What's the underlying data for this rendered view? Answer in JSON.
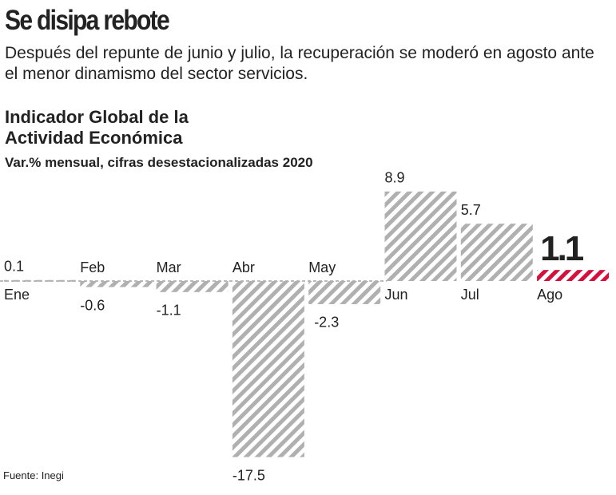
{
  "header": {
    "title": "Se disipa rebote",
    "subtitle": "Después del repunte de junio y julio, la recuperación se moderó en agosto ante el menor dinamismo del sector servicios."
  },
  "chart_data": {
    "type": "bar",
    "title": "Indicador Global de la Actividad Económica",
    "subtitle": "Var.% mensual, cifras desestacionalizadas 2020",
    "categories": [
      "Ene",
      "Feb",
      "Mar",
      "Abr",
      "May",
      "Jun",
      "Jul",
      "Ago"
    ],
    "values": [
      0.1,
      -0.6,
      -1.1,
      -17.5,
      -2.3,
      8.9,
      5.7,
      1.1
    ],
    "colors": [
      "#b0b0b0",
      "#b0b0b0",
      "#b0b0b0",
      "#b0b0b0",
      "#b0b0b0",
      "#b0b0b0",
      "#b0b0b0",
      "#d4103c"
    ]
  },
  "footer": {
    "source": "Fuente: Inegi"
  }
}
